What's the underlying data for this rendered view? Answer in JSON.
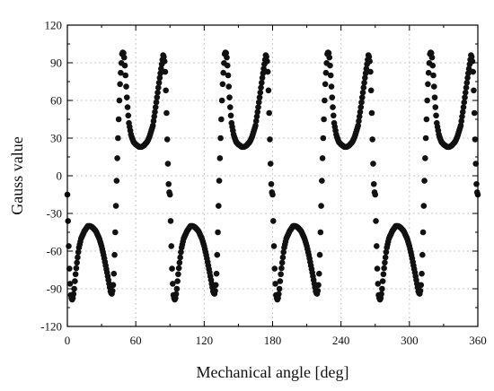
{
  "chart_data": {
    "type": "scatter",
    "title": "",
    "xlabel": "Mechanical angle [deg]",
    "ylabel": "Gauss value",
    "xlim": [
      0,
      360
    ],
    "ylim": [
      -120,
      120
    ],
    "x_ticks": [
      0,
      60,
      120,
      180,
      240,
      300,
      360
    ],
    "y_ticks": [
      -120,
      -90,
      -60,
      -30,
      0,
      30,
      60,
      90,
      120
    ],
    "grid": true,
    "legend": "none",
    "colors": {
      "series": "#111111",
      "grid": "#c8c8c8",
      "axis": "#000000"
    },
    "period_deg": 90,
    "series": [
      {
        "x": [
          0,
          1,
          2,
          3,
          4,
          5,
          6,
          7,
          8,
          10,
          12,
          15,
          18,
          20,
          22,
          25,
          28,
          30,
          32,
          35,
          37,
          38,
          39,
          40,
          41,
          42,
          43,
          44,
          45,
          46,
          47,
          48,
          49,
          50,
          51,
          52,
          53,
          54,
          56,
          58,
          60,
          63,
          65,
          67,
          70,
          72,
          75,
          77,
          79,
          81,
          83,
          84,
          85,
          86,
          87,
          88,
          89,
          90
        ],
        "y": [
          -15,
          -50,
          -80,
          -95,
          -99,
          -97,
          -90,
          -80,
          -72,
          -58,
          -50,
          -44,
          -40,
          -40,
          -41,
          -44,
          -50,
          -56,
          -64,
          -78,
          -88,
          -93,
          -94,
          -90,
          -75,
          -45,
          -10,
          20,
          45,
          70,
          85,
          97,
          99,
          93,
          80,
          65,
          52,
          42,
          32,
          27,
          25,
          23,
          23,
          24,
          27,
          31,
          40,
          52,
          65,
          78,
          90,
          96,
          94,
          80,
          50,
          15,
          -12,
          -15
        ]
      }
    ]
  }
}
